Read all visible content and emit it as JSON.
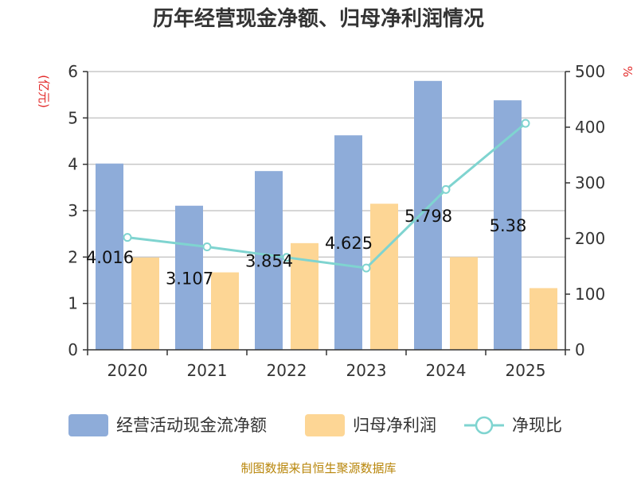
{
  "colors": {
    "bar1": "#8eacd9",
    "bar2": "#fdd695",
    "line": "#7fd4d0",
    "axis": "#333333",
    "grid": "#c8c8c8",
    "unit": "#e32a2a",
    "source": "#b8860b"
  },
  "chart_data": {
    "type": "bar",
    "title": "历年经营现金净额、归母净利润情况",
    "categories": [
      "2020",
      "2021",
      "2022",
      "2023",
      "2024",
      "2025"
    ],
    "left_axis": {
      "unit": "(亿元)",
      "ylim": [
        0,
        6
      ],
      "ticks": [
        "0",
        "1",
        "2",
        "3",
        "4",
        "5",
        "6"
      ]
    },
    "right_axis": {
      "unit": "%",
      "ylim": [
        0,
        500
      ],
      "ticks": [
        "0",
        "100",
        "200",
        "300",
        "400",
        "500"
      ]
    },
    "series": [
      {
        "name": "经营活动现金流净额",
        "type": "bar",
        "axis": "left",
        "values": [
          4.016,
          3.107,
          3.854,
          4.625,
          5.798,
          5.38
        ],
        "labels": [
          "4.016",
          "3.107",
          "3.854",
          "4.625",
          "5.798",
          "5.38"
        ]
      },
      {
        "name": "归母净利润",
        "type": "bar",
        "axis": "left",
        "values": [
          1.99,
          1.67,
          2.3,
          3.15,
          2.0,
          1.33
        ]
      },
      {
        "name": "净现比",
        "type": "line",
        "axis": "right",
        "values": [
          202,
          185,
          166,
          147,
          288,
          407
        ]
      }
    ],
    "grid": true,
    "legend": "bottom"
  },
  "source": "制图数据来自恒生聚源数据库"
}
